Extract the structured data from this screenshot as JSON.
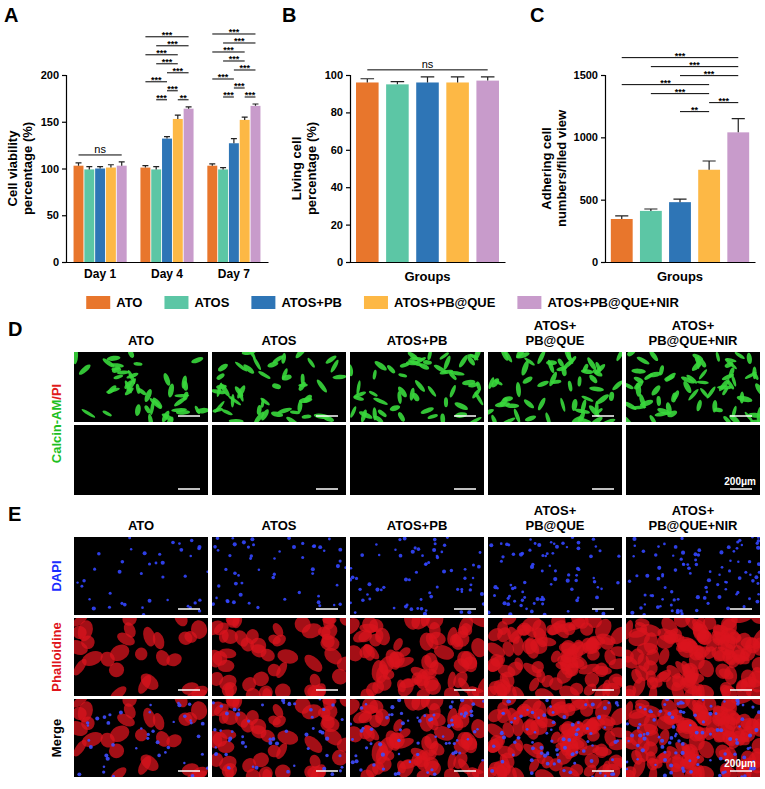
{
  "chart_data": [
    {
      "type": "bar",
      "label": "A",
      "categories": [
        "Day 1",
        "Day 4",
        "Day 7"
      ],
      "ylabel": "Cell viability percentage (%)",
      "series": [
        {
          "name": "ATO",
          "color": "#E8762C",
          "values": [
            103,
            101,
            103
          ],
          "errors": [
            3,
            2,
            2
          ]
        },
        {
          "name": "ATOS",
          "color": "#5CC6A5",
          "values": [
            99,
            99,
            99
          ],
          "errors": [
            3,
            3,
            2
          ]
        },
        {
          "name": "ATOS+PB",
          "color": "#2E75B6",
          "values": [
            100,
            132,
            127
          ],
          "errors": [
            2,
            2,
            5
          ]
        },
        {
          "name": "ATOS+PB@QUE",
          "color": "#FDB845",
          "values": [
            101,
            153,
            152
          ],
          "errors": [
            3,
            4,
            3
          ]
        },
        {
          "name": "ATOS+PB@QUE+NIR",
          "color": "#C89BCB",
          "values": [
            103,
            164,
            167
          ],
          "errors": [
            4,
            2,
            2
          ]
        }
      ],
      "ylim": [
        0,
        200
      ],
      "yticks": [
        0,
        50,
        100,
        150,
        200
      ],
      "legend": "bottom",
      "annotations": [
        {
          "group": 0,
          "from": 0,
          "to": 4,
          "label": "ns"
        },
        {
          "group": 1,
          "from": 1,
          "to": 2,
          "label": "***"
        },
        {
          "group": 1,
          "from": 2,
          "to": 3,
          "label": "***"
        },
        {
          "group": 1,
          "from": 3,
          "to": 4,
          "label": "**"
        },
        {
          "group": 1,
          "from": 0,
          "to": 2,
          "label": "***"
        },
        {
          "group": 1,
          "from": 2,
          "to": 4,
          "label": "***"
        },
        {
          "group": 1,
          "from": 1,
          "to": 3,
          "label": "***"
        },
        {
          "group": 1,
          "from": 0,
          "to": 3,
          "label": "***"
        },
        {
          "group": 1,
          "from": 1,
          "to": 4,
          "label": "***"
        },
        {
          "group": 1,
          "from": 0,
          "to": 4,
          "label": "***"
        },
        {
          "group": 2,
          "from": 1,
          "to": 2,
          "label": "***"
        },
        {
          "group": 2,
          "from": 2,
          "to": 3,
          "label": "***"
        },
        {
          "group": 2,
          "from": 3,
          "to": 4,
          "label": "***"
        },
        {
          "group": 2,
          "from": 0,
          "to": 2,
          "label": "***"
        },
        {
          "group": 2,
          "from": 2,
          "to": 4,
          "label": "***"
        },
        {
          "group": 2,
          "from": 1,
          "to": 3,
          "label": "***"
        },
        {
          "group": 2,
          "from": 0,
          "to": 3,
          "label": "***"
        },
        {
          "group": 2,
          "from": 1,
          "to": 4,
          "label": "***"
        },
        {
          "group": 2,
          "from": 0,
          "to": 4,
          "label": "***"
        }
      ]
    },
    {
      "type": "bar",
      "label": "B",
      "categories": [
        null,
        null,
        null,
        null,
        null
      ],
      "values": [
        96,
        95,
        96,
        96,
        97
      ],
      "errors": [
        2,
        1.5,
        3,
        3,
        2
      ],
      "colors": [
        "#E8762C",
        "#5CC6A5",
        "#2E75B6",
        "#FDB845",
        "#C89BCB"
      ],
      "xlabel": "Groups",
      "ylabel": "Living cell percentage (%)",
      "ylim": [
        0,
        100
      ],
      "yticks": [
        0,
        20,
        40,
        60,
        80,
        100
      ],
      "tick_labels": "y",
      "annotations": [
        {
          "from": 0,
          "to": 4,
          "label": "ns"
        }
      ]
    },
    {
      "type": "bar",
      "label": "C",
      "categories": [
        null,
        null,
        null,
        null,
        null
      ],
      "values": [
        345,
        410,
        480,
        740,
        1040
      ],
      "errors": [
        25,
        15,
        25,
        70,
        110
      ],
      "colors": [
        "#E8762C",
        "#5CC6A5",
        "#2E75B6",
        "#FDB845",
        "#C89BCB"
      ],
      "xlabel": "Groups",
      "ylabel": "Adhering cell numbers/filed view",
      "ylim": [
        0,
        1500
      ],
      "yticks": [
        0,
        500,
        1000,
        1500
      ],
      "tick_labels": "y",
      "annotations": [
        {
          "from": 2,
          "to": 3,
          "label": "**"
        },
        {
          "from": 3,
          "to": 4,
          "label": "***"
        },
        {
          "from": 1,
          "to": 3,
          "label": "***"
        },
        {
          "from": 0,
          "to": 3,
          "label": "***"
        },
        {
          "from": 2,
          "to": 4,
          "label": "***"
        },
        {
          "from": 1,
          "to": 4,
          "label": "***"
        },
        {
          "from": 0,
          "to": 4,
          "label": "***"
        }
      ]
    }
  ],
  "image_panels": [
    {
      "label": "D",
      "columns": [
        "ATO",
        "ATOS",
        "ATOS+PB",
        "ATOS+PB@QUE",
        "ATOS+PB@QUE+NIR"
      ],
      "row_label": [
        {
          "text": "Calcin-AM",
          "color": "#1FBF1F"
        },
        {
          "text": "/PI",
          "color": "#E01B1B"
        }
      ],
      "rows": [
        {
          "stains": [
            {
              "color": "#39D83C",
              "shape": "spindle"
            }
          ]
        },
        {
          "stains": []
        }
      ],
      "scale_bar": "200μm"
    },
    {
      "label": "E",
      "columns": [
        "ATO",
        "ATOS",
        "ATOS+PB",
        "ATOS+PB@QUE",
        "ATOS+PB@QUE+NIR"
      ],
      "rows": [
        {
          "label": "DAPI",
          "label_color": "#1A2CFF",
          "stains": [
            {
              "color": "#3346FF",
              "shape": "dot"
            }
          ]
        },
        {
          "label": "Phalloidine",
          "label_color": "#E0141B",
          "stains": [
            {
              "color": "#D9141D",
              "shape": "spread"
            }
          ]
        },
        {
          "label": "Merge",
          "label_color": "#000000",
          "stains": [
            {
              "color": "#D9141D",
              "shape": "spread"
            },
            {
              "color": "#3F4DFF",
              "shape": "dot"
            }
          ]
        }
      ],
      "scale_bar": "200μm"
    }
  ]
}
